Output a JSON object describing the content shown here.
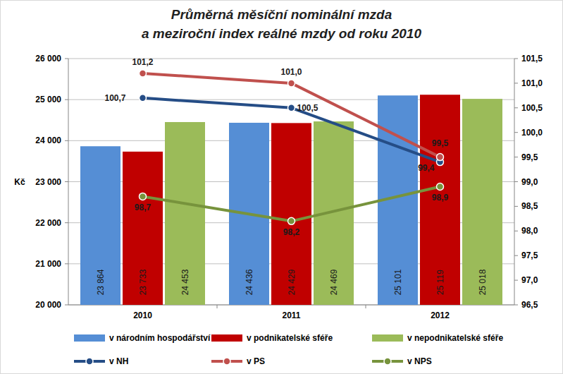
{
  "chart_data": {
    "type": "bar",
    "title": "Průměrná měsíční nominální mzda\na meziroční index reálné mzdy od roku 2010",
    "ylabel": "Kč",
    "categories": [
      "2010",
      "2011",
      "2012"
    ],
    "ylim": [
      20000,
      26000
    ],
    "yticks": [
      {
        "value": 20000,
        "label": "20 000"
      },
      {
        "value": 21000,
        "label": "21 000"
      },
      {
        "value": 22000,
        "label": "22 000"
      },
      {
        "value": 23000,
        "label": "23 000"
      },
      {
        "value": 24000,
        "label": "24 000"
      },
      {
        "value": 25000,
        "label": "25 000"
      },
      {
        "value": 26000,
        "label": "26 000"
      }
    ],
    "y2lim": [
      96.5,
      101.5
    ],
    "y2ticks": [
      {
        "value": 96.5,
        "label": "96,5"
      },
      {
        "value": 97,
        "label": "97,0"
      },
      {
        "value": 97.5,
        "label": "97,5"
      },
      {
        "value": 98,
        "label": "98,0"
      },
      {
        "value": 98.5,
        "label": "98,5"
      },
      {
        "value": 99,
        "label": "99,0"
      },
      {
        "value": 99.5,
        "label": "99,5"
      },
      {
        "value": 100,
        "label": "100,0"
      },
      {
        "value": 100.5,
        "label": "100,5"
      },
      {
        "value": 101,
        "label": "101,0"
      },
      {
        "value": 101.5,
        "label": "101,5"
      }
    ],
    "grid": true,
    "legend": "bottom",
    "data_labels": true,
    "series": [
      {
        "name": "v národním hospodářství",
        "type": "bar",
        "color": "#558ed5",
        "values": [
          23864,
          24436,
          25101
        ],
        "value_labels": [
          "23 864",
          "24 436",
          "25 101"
        ]
      },
      {
        "name": "v podnikatelské sféře",
        "type": "bar",
        "color": "#c00000",
        "values": [
          23733,
          24429,
          25119
        ],
        "value_labels": [
          "23 733",
          "24 429",
          "25 119"
        ]
      },
      {
        "name": "v nepodnikatelské sféře",
        "type": "bar",
        "color": "#9bbb59",
        "values": [
          24453,
          24469,
          25018
        ],
        "value_labels": [
          "24 453",
          "24 469",
          "25 018"
        ]
      },
      {
        "name": "v NH",
        "type": "line",
        "axis": "y2",
        "color": "#254d86",
        "marker": "circle",
        "values": [
          100.7,
          100.5,
          99.4
        ],
        "value_labels": [
          "100,7",
          "100,5",
          "99,4"
        ]
      },
      {
        "name": "v PS",
        "type": "line",
        "axis": "y2",
        "color": "#c0504d",
        "marker": "circle",
        "values": [
          101.2,
          101.0,
          99.5
        ],
        "value_labels": [
          "101,2",
          "101,0",
          "99,5"
        ]
      },
      {
        "name": "v NPS",
        "type": "line",
        "axis": "y2",
        "color": "#77933c",
        "marker": "circle",
        "values": [
          98.7,
          98.2,
          98.9
        ],
        "value_labels": [
          "98,7",
          "98,2",
          "98,9"
        ]
      }
    ]
  }
}
